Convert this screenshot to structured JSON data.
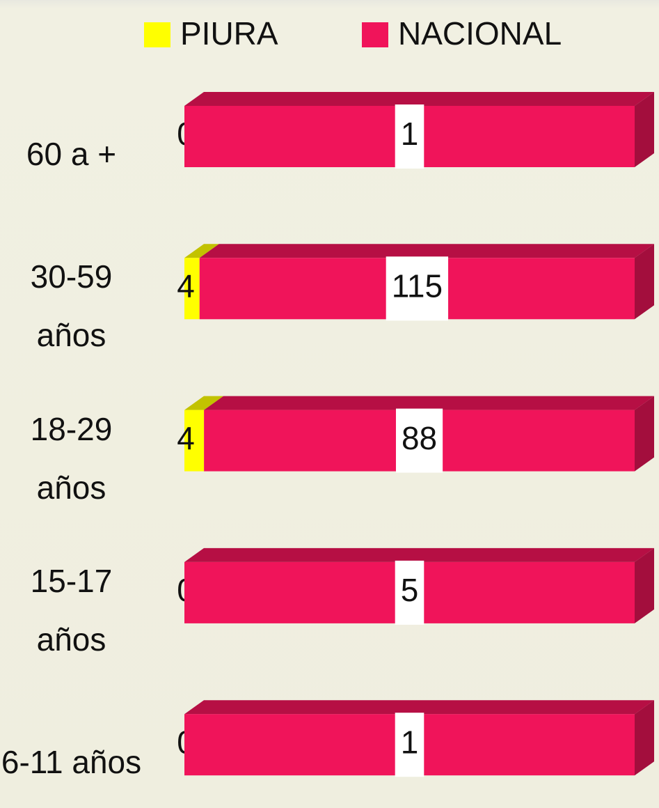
{
  "chart_data": {
    "type": "bar",
    "orientation": "horizontal",
    "stacked": "percent",
    "categories": [
      "60 a +",
      "30-59 años",
      "18-29 años",
      "15-17 años",
      "6-11 años"
    ],
    "series": [
      {
        "name": "PIURA",
        "color": "#ffff00",
        "values": [
          0,
          4,
          4,
          0,
          0
        ]
      },
      {
        "name": "NACIONAL",
        "color": "#f0145a",
        "values": [
          1,
          115,
          88,
          5,
          1
        ]
      }
    ],
    "legend": "top"
  }
}
